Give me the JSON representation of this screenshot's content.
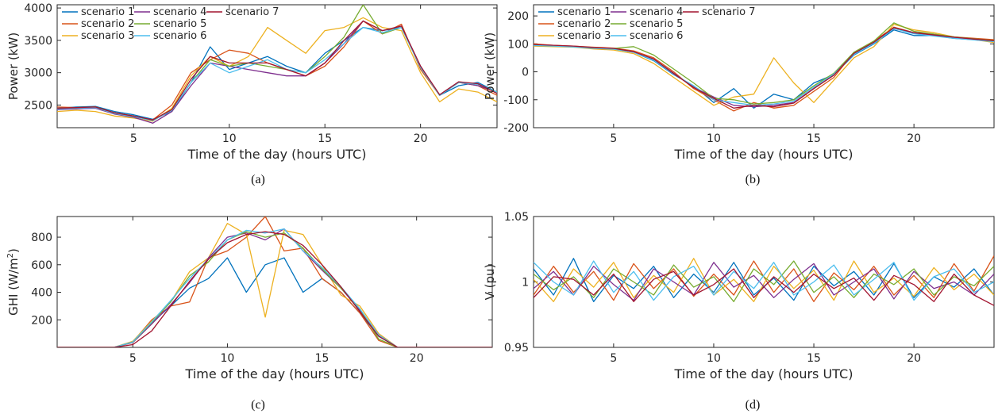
{
  "chart_data": [
    {
      "type": "line",
      "caption": "(a)",
      "xlabel": "Time of the day (hours UTC)",
      "ylabel": "Power (kW)",
      "xlim": [
        1,
        24
      ],
      "ylim": [
        2150,
        4050
      ],
      "xticks": [
        5,
        10,
        15,
        20
      ],
      "yticks": [
        2500,
        3000,
        3500,
        4000
      ],
      "legend": {
        "placement": "top-left",
        "columns": 3
      },
      "x": [
        1,
        2,
        3,
        4,
        5,
        6,
        7,
        8,
        9,
        10,
        11,
        12,
        13,
        14,
        15,
        16,
        17,
        18,
        19,
        20,
        21,
        22,
        23,
        24
      ],
      "series": [
        {
          "name": "scenario 1",
          "color": "#0072BD",
          "values": [
            2450,
            2470,
            2480,
            2400,
            2350,
            2280,
            2400,
            2850,
            3400,
            3050,
            3150,
            3250,
            3100,
            3000,
            3300,
            3500,
            3700,
            3650,
            3700,
            3100,
            2650,
            2800,
            2850,
            2700
          ]
        },
        {
          "name": "scenario 2",
          "color": "#D95319",
          "values": [
            2470,
            2460,
            2470,
            2380,
            2320,
            2270,
            2500,
            3000,
            3200,
            3350,
            3300,
            3150,
            3050,
            2950,
            3100,
            3400,
            3800,
            3600,
            3750,
            3050,
            2650,
            2850,
            2800,
            2650
          ]
        },
        {
          "name": "scenario 3",
          "color": "#EDB120",
          "values": [
            2400,
            2420,
            2400,
            2330,
            2300,
            2250,
            2450,
            2950,
            3250,
            3100,
            3250,
            3700,
            3500,
            3300,
            3650,
            3700,
            3850,
            3700,
            3650,
            3000,
            2550,
            2750,
            2700,
            2550
          ]
        },
        {
          "name": "scenario 4",
          "color": "#7E2F8E",
          "values": [
            2430,
            2440,
            2450,
            2360,
            2310,
            2220,
            2400,
            2800,
            3150,
            3100,
            3050,
            3000,
            2950,
            2950,
            3150,
            3450,
            3800,
            3650,
            3720,
            3100,
            2650,
            2850,
            2800,
            2700
          ]
        },
        {
          "name": "scenario 5",
          "color": "#77AC30",
          "values": [
            2440,
            2460,
            2470,
            2380,
            2330,
            2260,
            2420,
            2850,
            3200,
            3100,
            3150,
            3100,
            3050,
            3000,
            3250,
            3550,
            4050,
            3600,
            3700,
            3080,
            2650,
            2850,
            2820,
            2700
          ]
        },
        {
          "name": "scenario 6",
          "color": "#4DBEEE",
          "values": [
            2440,
            2450,
            2460,
            2370,
            2320,
            2260,
            2420,
            2850,
            3150,
            3000,
            3100,
            3200,
            3050,
            3000,
            3200,
            3450,
            3700,
            3620,
            3700,
            3080,
            2650,
            2850,
            2820,
            2700
          ]
        },
        {
          "name": "scenario 7",
          "color": "#A2142F",
          "values": [
            2450,
            2460,
            2470,
            2380,
            2330,
            2270,
            2430,
            2900,
            3250,
            3150,
            3150,
            3150,
            3050,
            2950,
            3150,
            3500,
            3800,
            3650,
            3720,
            3100,
            2660,
            2860,
            2830,
            2680
          ]
        }
      ]
    },
    {
      "type": "line",
      "caption": "(b)",
      "xlabel": "Time of the day (hours UTC)",
      "ylabel": "Power (kW)",
      "xlim": [
        1,
        24
      ],
      "ylim": [
        -200,
        240
      ],
      "xticks": [
        5,
        10,
        15,
        20
      ],
      "yticks": [
        -200,
        -100,
        0,
        100,
        200
      ],
      "legend": {
        "placement": "top-left",
        "columns": 3
      },
      "x": [
        1,
        2,
        3,
        4,
        5,
        6,
        7,
        8,
        9,
        10,
        11,
        12,
        13,
        14,
        15,
        16,
        17,
        18,
        19,
        20,
        21,
        22,
        23,
        24
      ],
      "series": [
        {
          "name": "scenario 1",
          "color": "#0072BD",
          "values": [
            95,
            92,
            90,
            85,
            82,
            70,
            40,
            -10,
            -50,
            -110,
            -60,
            -130,
            -80,
            -100,
            -40,
            -10,
            60,
            100,
            150,
            130,
            130,
            120,
            115,
            110
          ]
        },
        {
          "name": "scenario 2",
          "color": "#D95319",
          "values": [
            100,
            95,
            92,
            88,
            85,
            75,
            50,
            0,
            -60,
            -100,
            -140,
            -110,
            -130,
            -120,
            -70,
            -20,
            70,
            110,
            160,
            140,
            135,
            125,
            120,
            115
          ]
        },
        {
          "name": "scenario 3",
          "color": "#EDB120",
          "values": [
            92,
            90,
            88,
            82,
            78,
            65,
            30,
            -20,
            -70,
            -120,
            -90,
            -80,
            50,
            -40,
            -110,
            -30,
            50,
            90,
            170,
            150,
            140,
            125,
            115,
            105
          ]
        },
        {
          "name": "scenario 4",
          "color": "#7E2F8E",
          "values": [
            97,
            94,
            91,
            86,
            83,
            72,
            45,
            -5,
            -55,
            -90,
            -120,
            -125,
            -120,
            -110,
            -60,
            -10,
            65,
            105,
            155,
            138,
            130,
            122,
            116,
            110
          ]
        },
        {
          "name": "scenario 5",
          "color": "#77AC30",
          "values": [
            96,
            93,
            90,
            86,
            84,
            90,
            60,
            10,
            -40,
            -95,
            -100,
            -115,
            -110,
            -100,
            -50,
            -5,
            70,
            110,
            175,
            145,
            135,
            125,
            118,
            112
          ]
        },
        {
          "name": "scenario 6",
          "color": "#4DBEEE",
          "values": [
            94,
            92,
            89,
            84,
            81,
            70,
            42,
            -8,
            -50,
            -100,
            -110,
            -120,
            -115,
            -105,
            -55,
            -8,
            62,
            102,
            155,
            136,
            128,
            120,
            114,
            108
          ]
        },
        {
          "name": "scenario 7",
          "color": "#A2142F",
          "values": [
            98,
            95,
            92,
            87,
            84,
            72,
            46,
            -6,
            -56,
            -95,
            -130,
            -120,
            -125,
            -112,
            -60,
            -12,
            66,
            106,
            158,
            140,
            132,
            124,
            117,
            111
          ]
        }
      ]
    },
    {
      "type": "line",
      "caption": "(c)",
      "xlabel": "Time of the day (hours UTC)",
      "ylabel": "GHI (W/m",
      "ylabel_sup": "2",
      "ylabel_close": ")",
      "xlim": [
        1,
        24
      ],
      "ylim": [
        0,
        950
      ],
      "xticks": [
        5,
        10,
        15,
        20
      ],
      "yticks": [
        200,
        400,
        600,
        800
      ],
      "x": [
        1,
        2,
        3,
        4,
        5,
        6,
        7,
        8,
        9,
        10,
        11,
        12,
        13,
        14,
        15,
        16,
        17,
        18,
        19,
        20,
        21,
        22,
        23,
        24
      ],
      "series": [
        {
          "name": "scenario 1",
          "color": "#0072BD",
          "values": [
            0,
            0,
            0,
            0,
            40,
            180,
            300,
            430,
            500,
            650,
            400,
            600,
            650,
            400,
            500,
            400,
            250,
            80,
            0,
            0,
            0,
            0,
            0,
            0
          ]
        },
        {
          "name": "scenario 2",
          "color": "#D95319",
          "values": [
            0,
            0,
            0,
            0,
            40,
            200,
            300,
            330,
            650,
            700,
            800,
            950,
            700,
            720,
            500,
            400,
            250,
            50,
            0,
            0,
            0,
            0,
            0,
            0
          ]
        },
        {
          "name": "scenario 3",
          "color": "#EDB120",
          "values": [
            0,
            0,
            0,
            0,
            45,
            190,
            330,
            550,
            650,
            900,
            820,
            220,
            850,
            820,
            600,
            380,
            300,
            100,
            0,
            0,
            0,
            0,
            0,
            0
          ]
        },
        {
          "name": "scenario 4",
          "color": "#7E2F8E",
          "values": [
            0,
            0,
            0,
            0,
            35,
            170,
            310,
            470,
            650,
            800,
            830,
            780,
            860,
            700,
            560,
            430,
            270,
            90,
            0,
            0,
            0,
            0,
            0,
            0
          ]
        },
        {
          "name": "scenario 5",
          "color": "#77AC30",
          "values": [
            0,
            0,
            0,
            0,
            38,
            180,
            330,
            520,
            620,
            780,
            840,
            800,
            830,
            720,
            570,
            430,
            280,
            60,
            0,
            0,
            0,
            0,
            0,
            0
          ]
        },
        {
          "name": "scenario 6",
          "color": "#4DBEEE",
          "values": [
            0,
            0,
            0,
            0,
            40,
            185,
            340,
            500,
            640,
            780,
            850,
            830,
            860,
            700,
            580,
            440,
            280,
            90,
            0,
            0,
            0,
            0,
            0,
            0
          ]
        },
        {
          "name": "scenario 7",
          "color": "#A2142F",
          "values": [
            0,
            0,
            0,
            0,
            20,
            120,
            300,
            480,
            640,
            760,
            820,
            840,
            820,
            740,
            600,
            440,
            260,
            80,
            0,
            0,
            0,
            0,
            0,
            0
          ]
        }
      ]
    },
    {
      "type": "line",
      "caption": "(d)",
      "xlabel": "Time of the day (hours UTC)",
      "ylabel": "V (pu)",
      "xlim": [
        1,
        24
      ],
      "ylim": [
        0.95,
        1.05
      ],
      "xticks": [
        5,
        10,
        15,
        20
      ],
      "yticks": [
        0.95,
        1,
        1.05
      ],
      "ytick_labels": [
        "0.95",
        "1",
        "1.05"
      ],
      "x": [
        1,
        2,
        3,
        4,
        5,
        6,
        7,
        8,
        9,
        10,
        11,
        12,
        13,
        14,
        15,
        16,
        17,
        18,
        19,
        20,
        21,
        22,
        23,
        24
      ],
      "series": [
        {
          "name": "scenario 1",
          "color": "#0072BD",
          "values": [
            1.01,
            0.99,
            1.018,
            0.985,
            1.005,
            0.995,
            1.012,
            0.988,
            1.006,
            0.992,
            1.015,
            0.99,
            1.003,
            0.986,
            1.012,
            0.997,
            1.008,
            0.99,
            1.014,
            0.988,
            1.004,
            0.996,
            1.01,
            0.99
          ]
        },
        {
          "name": "scenario 2",
          "color": "#D95319",
          "values": [
            0.99,
            1.012,
            0.992,
            1.008,
            0.986,
            1.014,
            0.995,
            1.01,
            0.989,
            1.006,
            0.99,
            1.016,
            0.992,
            1.01,
            0.985,
            1.007,
            0.994,
            1.012,
            0.99,
            1.005,
            0.988,
            1.014,
            0.993,
            1.02
          ]
        },
        {
          "name": "scenario 3",
          "color": "#EDB120",
          "values": [
            1.002,
            0.985,
            1.01,
            0.996,
            1.015,
            0.988,
            1.005,
            0.992,
            1.018,
            0.99,
            1.002,
            0.985,
            1.012,
            0.995,
            1.009,
            0.986,
            1.016,
            0.992,
            1.003,
            0.989,
            1.011,
            0.994,
            1.006,
            0.99
          ]
        },
        {
          "name": "scenario 4",
          "color": "#7E2F8E",
          "values": [
            0.995,
            1.008,
            0.99,
            1.012,
            0.998,
            0.986,
            1.01,
            1.0,
            0.99,
            1.015,
            0.996,
            1.005,
            0.988,
            1.002,
            1.014,
            0.99,
            1.0,
            1.01,
            0.987,
            1.008,
            0.995,
            1.0,
            0.99,
            1.006
          ]
        },
        {
          "name": "scenario 5",
          "color": "#77AC30",
          "values": [
            1.006,
            0.994,
            1.004,
            0.988,
            1.01,
            1.0,
            0.99,
            1.013,
            0.996,
            1.004,
            0.985,
            1.01,
            0.998,
            1.016,
            0.992,
            1.004,
            0.988,
            1.006,
            0.998,
            1.01,
            0.99,
            1.004,
            0.997,
            1.012
          ]
        },
        {
          "name": "scenario 6",
          "color": "#4DBEEE",
          "values": [
            1.015,
            1.0,
            0.99,
            1.016,
            0.992,
            1.008,
            0.986,
            1.004,
            1.012,
            0.99,
            1.008,
            0.995,
            1.015,
            0.99,
            1.0,
            1.013,
            0.99,
            1.002,
            1.015,
            0.986,
            1.004,
            1.01,
            0.992,
            1.0
          ]
        },
        {
          "name": "scenario 7",
          "color": "#A2142F",
          "values": [
            0.988,
            1.004,
            1.002,
            0.99,
            1.006,
            0.985,
            1.002,
            1.008,
            0.99,
            0.998,
            1.01,
            0.988,
            1.004,
            0.992,
            1.006,
            0.995,
            1.003,
            0.986,
            1.005,
            0.998,
            0.985,
            1.006,
            0.99,
            0.982
          ]
        }
      ]
    }
  ]
}
